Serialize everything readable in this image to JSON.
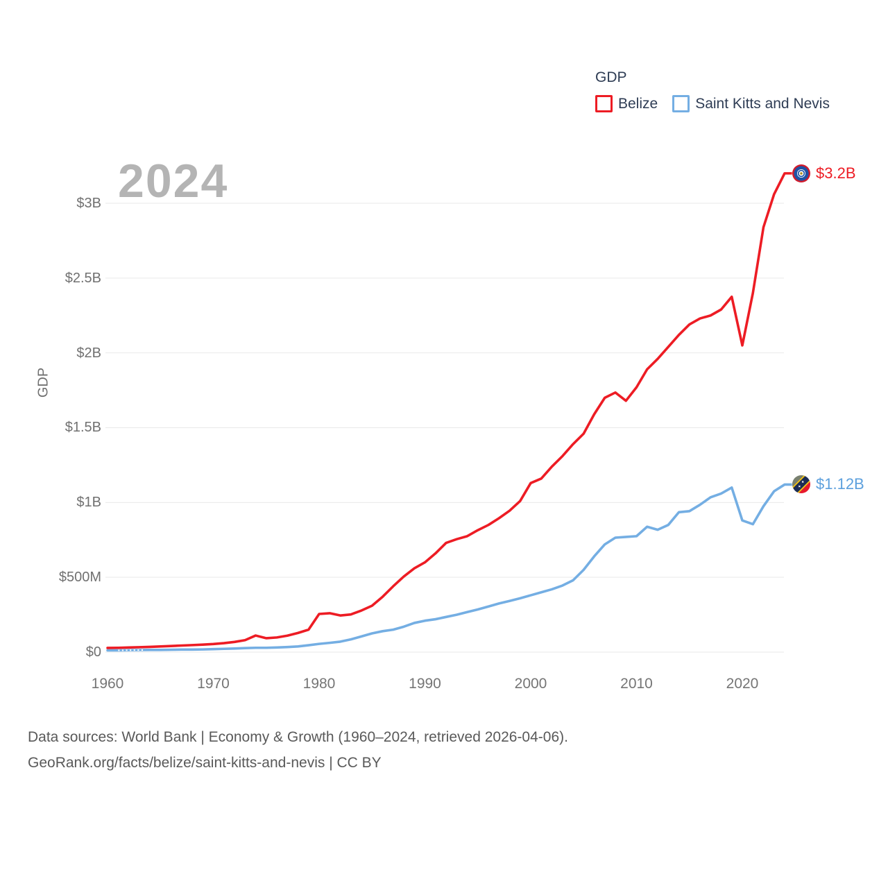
{
  "legend": {
    "title": "GDP",
    "items": [
      {
        "label": "Belize",
        "color": "#ed1c24"
      },
      {
        "label": "Saint Kitts and Nevis",
        "color": "#74aee3"
      }
    ]
  },
  "watermark": "2024",
  "y_axis_title": "GDP",
  "footer": {
    "line1": "Data sources: World Bank | Economy & Growth (1960–2024, retrieved 2026-04-06).",
    "line2": "GeoRank.org/facts/belize/saint-kitts-and-nevis | CC BY"
  },
  "chart_data": {
    "type": "line",
    "title": "GDP",
    "ylabel": "GDP",
    "xlabel": "",
    "units": "USD, millions",
    "grid": true,
    "legend_position": "top-right",
    "xlim": [
      1960,
      2024
    ],
    "ylim": [
      0,
      3200
    ],
    "x_tick_years": [
      1960,
      1970,
      1980,
      1990,
      2000,
      2010,
      2020
    ],
    "y_gridlines": [
      {
        "label": "$0",
        "value": 0
      },
      {
        "label": "$500M",
        "value": 500
      },
      {
        "label": "$1B",
        "value": 1000
      },
      {
        "label": "$1.5B",
        "value": 1500
      },
      {
        "label": "$2B",
        "value": 2000
      },
      {
        "label": "$2.5B",
        "value": 2500
      },
      {
        "label": "$3B",
        "value": 3000
      }
    ],
    "x": [
      1960,
      1961,
      1962,
      1963,
      1964,
      1965,
      1966,
      1967,
      1968,
      1969,
      1970,
      1971,
      1972,
      1973,
      1974,
      1975,
      1976,
      1977,
      1978,
      1979,
      1980,
      1981,
      1982,
      1983,
      1984,
      1985,
      1986,
      1987,
      1988,
      1989,
      1990,
      1991,
      1992,
      1993,
      1994,
      1995,
      1996,
      1997,
      1998,
      1999,
      2000,
      2001,
      2002,
      2003,
      2004,
      2005,
      2006,
      2007,
      2008,
      2009,
      2010,
      2011,
      2012,
      2013,
      2014,
      2015,
      2016,
      2017,
      2018,
      2019,
      2020,
      2021,
      2022,
      2023,
      2024
    ],
    "series": [
      {
        "name": "Belize",
        "color": "#ed1c24",
        "end_label": "$3.2B",
        "end_label_color": "#ed1c24",
        "values": [
          28,
          29,
          31,
          33,
          35,
          38,
          41,
          44,
          47,
          50,
          54,
          60,
          68,
          80,
          111,
          93,
          98,
          110,
          128,
          150,
          255,
          260,
          245,
          252,
          278,
          310,
          370,
          440,
          505,
          560,
          600,
          660,
          730,
          755,
          775,
          815,
          850,
          895,
          945,
          1010,
          1130,
          1160,
          1240,
          1310,
          1390,
          1460,
          1590,
          1700,
          1735,
          1680,
          1770,
          1890,
          1960,
          2040,
          2120,
          2190,
          2230,
          2250,
          2290,
          2375,
          2050,
          2400,
          2840,
          3060,
          3200
        ]
      },
      {
        "name": "Saint Kitts and Nevis",
        "color": "#74aee3",
        "end_label": "$1.12B",
        "end_label_color": "#5da0dd",
        "values": [
          12,
          12,
          13,
          14,
          15,
          15,
          16,
          17,
          17,
          18,
          20,
          22,
          24,
          27,
          29,
          29,
          31,
          34,
          38,
          46,
          55,
          62,
          70,
          85,
          105,
          125,
          140,
          150,
          170,
          195,
          210,
          220,
          235,
          250,
          268,
          285,
          305,
          325,
          342,
          360,
          380,
          400,
          420,
          445,
          480,
          550,
          640,
          720,
          765,
          770,
          775,
          838,
          818,
          850,
          935,
          942,
          985,
          1035,
          1060,
          1100,
          880,
          855,
          975,
          1075,
          1120
        ]
      }
    ]
  }
}
